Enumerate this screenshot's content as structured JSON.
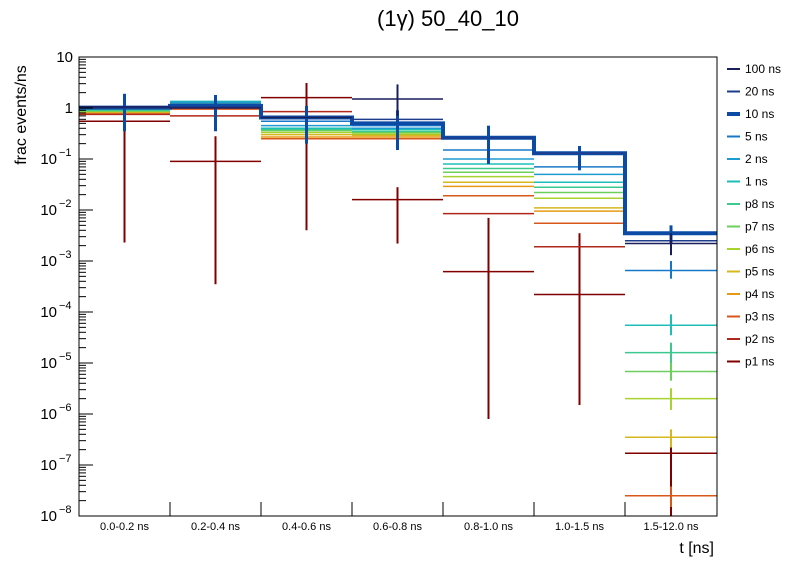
{
  "chart_data": {
    "type": "step-histogram-log",
    "title": "(1γ) 50_40_10",
    "xlabel": "t [ns]",
    "ylabel": "frac events/ns",
    "yscale": "log",
    "ylim": [
      1e-08,
      10
    ],
    "yticks": [
      {
        "value": 10,
        "label": "10",
        "exp": ""
      },
      {
        "value": 1,
        "label": "1",
        "exp": ""
      },
      {
        "value": 0.1,
        "label": "10",
        "exp": "−1"
      },
      {
        "value": 0.01,
        "label": "10",
        "exp": "−2"
      },
      {
        "value": 0.001,
        "label": "10",
        "exp": "−3"
      },
      {
        "value": 0.0001,
        "label": "10",
        "exp": "−4"
      },
      {
        "value": 1e-05,
        "label": "10",
        "exp": "−5"
      },
      {
        "value": 1e-06,
        "label": "10",
        "exp": "−6"
      },
      {
        "value": 1e-07,
        "label": "10",
        "exp": "−7"
      },
      {
        "value": 1e-08,
        "label": "10",
        "exp": "−8"
      }
    ],
    "categories": [
      "0.0-0.2 ns",
      "0.2-0.4 ns",
      "0.4-0.6 ns",
      "0.6-0.8 ns",
      "0.8-1.0 ns",
      "1.0-1.5 ns",
      "1.5-12.0 ns"
    ],
    "highlight_series": "10 ns",
    "series": [
      {
        "name": "100 ns",
        "color": "#1a1f5c",
        "values": [
          1.05,
          1.0,
          0.65,
          1.5,
          null,
          null,
          0.0022
        ],
        "err_hi": [
          null,
          null,
          null,
          2.9,
          null,
          null,
          0.0035
        ],
        "err_lo": [
          null,
          null,
          null,
          0.7,
          null,
          null,
          0.0013
        ]
      },
      {
        "name": "20 ns",
        "color": "#1d3c8c",
        "values": [
          1.0,
          1.05,
          0.65,
          0.6,
          0.26,
          0.13,
          0.0025
        ],
        "err_hi": [
          null,
          null,
          null,
          null,
          null,
          null,
          null
        ],
        "err_lo": [
          null,
          null,
          null,
          null,
          null,
          null,
          null
        ]
      },
      {
        "name": "10 ns",
        "color": "#0b4ba6",
        "values": [
          1.02,
          1.1,
          0.65,
          0.5,
          0.26,
          0.13,
          0.0035
        ],
        "err_hi": [
          1.9,
          1.8,
          1.1,
          0.9,
          0.45,
          0.18,
          0.005
        ],
        "err_lo": [
          0.35,
          0.35,
          0.2,
          0.15,
          0.08,
          0.06,
          0.0022
        ]
      },
      {
        "name": "5 ns",
        "color": "#1878c8",
        "values": [
          1.0,
          1.2,
          0.55,
          0.45,
          0.15,
          0.07,
          0.00065
        ],
        "err_hi": [
          null,
          null,
          null,
          null,
          null,
          null,
          0.001
        ],
        "err_lo": [
          null,
          null,
          null,
          null,
          null,
          null,
          0.00045
        ]
      },
      {
        "name": "2 ns",
        "color": "#1e9bd0",
        "values": [
          0.98,
          1.3,
          0.45,
          0.4,
          0.1,
          0.05,
          null
        ],
        "err_hi": [
          null,
          null,
          null,
          null,
          null,
          null,
          null
        ],
        "err_lo": [
          null,
          null,
          null,
          null,
          null,
          null,
          null
        ]
      },
      {
        "name": "1 ns",
        "color": "#1ebeb8",
        "values": [
          0.95,
          1.35,
          0.4,
          0.38,
          0.08,
          0.035,
          5.5e-05
        ],
        "err_hi": [
          null,
          null,
          null,
          null,
          null,
          null,
          9e-05
        ],
        "err_lo": [
          null,
          null,
          null,
          null,
          null,
          null,
          3.5e-05
        ]
      },
      {
        "name": "p8 ns",
        "color": "#3cc98f",
        "values": [
          0.9,
          1.3,
          0.38,
          0.35,
          0.065,
          0.028,
          1.6e-05
        ],
        "err_hi": [
          null,
          null,
          null,
          null,
          null,
          null,
          2.5e-05
        ],
        "err_lo": [
          null,
          null,
          null,
          null,
          null,
          null,
          1e-05
        ]
      },
      {
        "name": "p7 ns",
        "color": "#6ccf5c",
        "values": [
          0.88,
          1.25,
          0.36,
          0.33,
          0.055,
          0.022,
          6.8e-06
        ],
        "err_hi": [
          null,
          2.1,
          null,
          null,
          null,
          null,
          1e-05
        ],
        "err_lo": [
          null,
          null,
          null,
          null,
          null,
          null,
          4.5e-06
        ]
      },
      {
        "name": "p6 ns",
        "color": "#a8d22e",
        "values": [
          0.86,
          1.2,
          0.33,
          0.31,
          0.045,
          0.017,
          2e-06
        ],
        "err_hi": [
          null,
          null,
          null,
          null,
          null,
          null,
          3.2e-06
        ],
        "err_lo": [
          null,
          null,
          null,
          null,
          null,
          null,
          1.2e-06
        ]
      },
      {
        "name": "p5 ns",
        "color": "#d6b81e",
        "values": [
          0.84,
          1.15,
          0.3,
          0.29,
          0.035,
          0.011,
          3.5e-07
        ],
        "err_hi": [
          null,
          null,
          null,
          null,
          null,
          null,
          5e-07
        ],
        "err_lo": [
          null,
          null,
          null,
          null,
          null,
          null,
          2.2e-07
        ]
      },
      {
        "name": "p4 ns",
        "color": "#e69a16",
        "values": [
          0.82,
          1.05,
          0.27,
          0.27,
          0.029,
          0.0095,
          null
        ],
        "err_hi": [
          null,
          null,
          null,
          null,
          null,
          null,
          null
        ],
        "err_lo": [
          null,
          null,
          null,
          null,
          null,
          null,
          null
        ]
      },
      {
        "name": "p3 ns",
        "color": "#d8571a",
        "values": [
          0.8,
          0.95,
          0.25,
          0.25,
          0.019,
          0.0055,
          2.5e-08
        ],
        "err_hi": [
          null,
          null,
          null,
          null,
          null,
          null,
          3.8e-08
        ],
        "err_lo": [
          null,
          null,
          null,
          null,
          null,
          null,
          1.5e-08
        ]
      },
      {
        "name": "p2 ns",
        "color": "#b0281a",
        "values": [
          0.75,
          0.7,
          0.85,
          0.3,
          0.0085,
          0.0019,
          null
        ],
        "err_hi": [
          null,
          null,
          null,
          null,
          null,
          null,
          null
        ],
        "err_lo": [
          null,
          null,
          null,
          null,
          null,
          null,
          null
        ]
      },
      {
        "name": "p1 ns",
        "color": "#800000",
        "values": [
          0.55,
          0.09,
          1.6,
          0.016,
          0.00062,
          0.00022,
          1.7e-07
        ],
        "err_hi": [
          1.7,
          0.28,
          3.1,
          0.028,
          0.007,
          0.0035,
          3.4e-07
        ],
        "err_lo": [
          0.0023,
          0.00035,
          0.004,
          0.0022,
          8e-07,
          1.5e-06,
          1e-08
        ]
      }
    ]
  }
}
